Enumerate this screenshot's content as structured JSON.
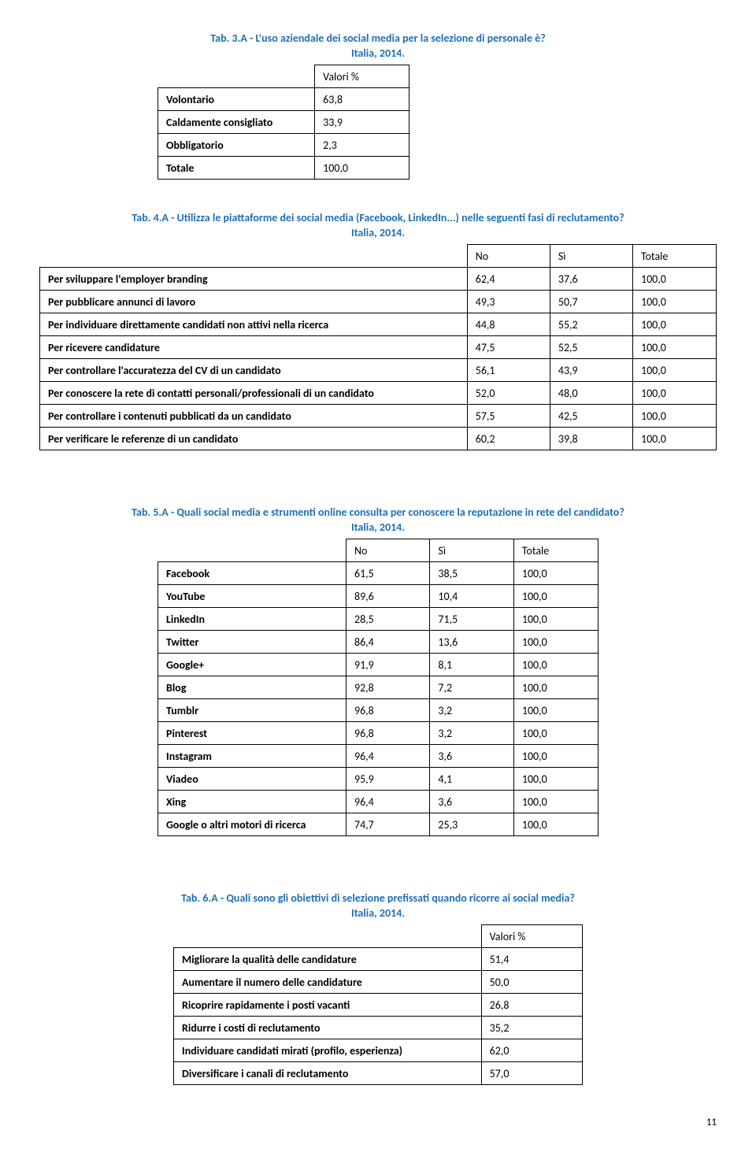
{
  "colors": {
    "caption": "#1f6fb5",
    "border": "#000000",
    "bg": "#ffffff",
    "text": "#000000"
  },
  "page_number": "11",
  "tab3": {
    "title": "Tab. 3.A - L'uso aziendale dei social media per la selezione di personale è?",
    "subtitle": "Italia, 2014.",
    "header": "Valori %",
    "rows": [
      {
        "label": "Volontario",
        "v": "63,8"
      },
      {
        "label": "Caldamente consigliato",
        "v": "33,9"
      },
      {
        "label": "Obbligatorio",
        "v": "2,3"
      },
      {
        "label": "Totale",
        "v": "100,0"
      }
    ]
  },
  "tab4": {
    "title": "Tab. 4.A - Utilizza le piattaforme dei social media (Facebook, LinkedIn...) nelle seguenti fasi di reclutamento?",
    "subtitle": "Italia, 2014.",
    "headers": {
      "no": "No",
      "si": "Sì",
      "tot": "Totale"
    },
    "rows": [
      {
        "label": "Per sviluppare l'employer branding",
        "no": "62,4",
        "si": "37,6",
        "tot": "100,0"
      },
      {
        "label": "Per pubblicare annunci di lavoro",
        "no": "49,3",
        "si": "50,7",
        "tot": "100,0"
      },
      {
        "label": "Per individuare direttamente candidati non attivi nella ricerca",
        "no": "44,8",
        "si": "55,2",
        "tot": "100,0"
      },
      {
        "label": "Per ricevere candidature",
        "no": "47,5",
        "si": "52,5",
        "tot": "100,0"
      },
      {
        "label": "Per controllare l'accuratezza del CV di un candidato",
        "no": "56,1",
        "si": "43,9",
        "tot": "100,0"
      },
      {
        "label": "Per conoscere la rete di contatti personali/professionali di un candidato",
        "no": "52,0",
        "si": "48,0",
        "tot": "100,0"
      },
      {
        "label": "Per controllare i contenuti pubblicati da un candidato",
        "no": "57,5",
        "si": "42,5",
        "tot": "100,0"
      },
      {
        "label": "Per verificare le referenze di un candidato",
        "no": "60,2",
        "si": "39,8",
        "tot": "100,0"
      }
    ]
  },
  "tab5": {
    "title": "Tab. 5.A - Quali social media e strumenti online consulta per conoscere la reputazione in rete  del candidato?",
    "subtitle": "Italia, 2014.",
    "headers": {
      "no": "No",
      "si": "Sì",
      "tot": "Totale"
    },
    "rows": [
      {
        "label": "Facebook",
        "no": "61,5",
        "si": "38,5",
        "tot": "100,0"
      },
      {
        "label": "YouTube",
        "no": "89,6",
        "si": "10,4",
        "tot": "100,0"
      },
      {
        "label": "LinkedIn",
        "no": "28,5",
        "si": "71,5",
        "tot": "100,0"
      },
      {
        "label": "Twitter",
        "no": "86,4",
        "si": "13,6",
        "tot": "100,0"
      },
      {
        "label": "Google+",
        "no": "91,9",
        "si": "8,1",
        "tot": "100,0"
      },
      {
        "label": "Blog",
        "no": "92,8",
        "si": "7,2",
        "tot": "100,0"
      },
      {
        "label": "Tumblr",
        "no": "96,8",
        "si": "3,2",
        "tot": "100,0"
      },
      {
        "label": "Pinterest",
        "no": "96,8",
        "si": "3,2",
        "tot": "100,0"
      },
      {
        "label": "Instagram",
        "no": "96,4",
        "si": "3,6",
        "tot": "100,0"
      },
      {
        "label": "Viadeo",
        "no": "95,9",
        "si": "4,1",
        "tot": "100,0"
      },
      {
        "label": "Xing",
        "no": "96,4",
        "si": "3,6",
        "tot": "100,0"
      },
      {
        "label": "Google o altri motori di ricerca",
        "no": "74,7",
        "si": "25,3",
        "tot": "100,0"
      }
    ]
  },
  "tab6": {
    "title": "Tab. 6.A - Quali sono gli obiettivi di selezione prefissati quando ricorre ai social media?",
    "subtitle": "Italia, 2014.",
    "header": "Valori %",
    "rows": [
      {
        "label": "Migliorare la qualità delle candidature",
        "v": "51,4"
      },
      {
        "label": "Aumentare il numero delle candidature",
        "v": "50,0"
      },
      {
        "label": "Ricoprire rapidamente i posti vacanti",
        "v": "26,8"
      },
      {
        "label": "Ridurre i costi di  reclutamento",
        "v": "35,2"
      },
      {
        "label": "Individuare candidati mirati (profilo, esperienza)",
        "v": "62,0"
      },
      {
        "label": "Diversificare i canali di reclutamento",
        "v": "57,0"
      }
    ]
  }
}
